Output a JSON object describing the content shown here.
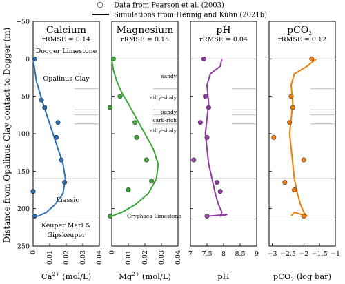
{
  "legend": {
    "data_label": "Data from Pearson et al. (2003)",
    "sim_label": "Simulations from Hennig and Kühn (2021b)"
  },
  "ylabel": "Distance from Opalinus Clay contact to Dogger (m)",
  "panels": {
    "ca": {
      "title": "Calcium",
      "rrmse": "rRMSE = 0.14",
      "xlabel": "Ca",
      "xlabel_sup": "2+",
      "xlabel_unit": " (mol/L)",
      "annotations": {
        "dogger": "Dogger Limestone",
        "opalinus": "Opalinus Clay",
        "liassic": "Liassic",
        "keuper1": "Keuper Marl &",
        "keuper2": "Gipskeuper"
      }
    },
    "mg": {
      "title": "Magnesium",
      "rrmse": "rRMSE = 0.15",
      "xlabel": "Mg",
      "xlabel_sup": "2+",
      "xlabel_unit": " (mol/L)",
      "annotations": {
        "sandy": "sandy",
        "silty1": "silty-shaly",
        "sandy2": "sandy",
        "carb": "carb-rich",
        "silty2": "silty-shaly",
        "gryphaea": "Gryphaea Limestone"
      }
    },
    "ph": {
      "title": "pH",
      "rrmse": "rRMSE = 0.04",
      "xlabel": "pH"
    },
    "pco2": {
      "title": "pCO",
      "title_sub": "2",
      "rrmse": "rRMSE = 0.12",
      "xlabel": "pCO",
      "xlabel_sub": "2",
      "xlabel_unit": " (log bar)"
    }
  },
  "colors": {
    "ca": "#2f6fae",
    "mg": "#3aa637",
    "ph": "#8e3c9e",
    "pco2": "#f07c0a",
    "boundary": "#888888",
    "sub": "#999999"
  },
  "chart_data": [
    {
      "type": "scatter+line",
      "name": "Calcium",
      "x_ticks": [
        "0",
        "0.01",
        "0.02",
        "0.03",
        "0.04"
      ],
      "xlim": [
        0,
        0.04
      ],
      "y_ticks": [
        "−50",
        "0",
        "50",
        "100",
        "150",
        "200",
        "250"
      ],
      "ylim": [
        250,
        -50
      ],
      "points": [
        {
          "x": 0.001,
          "y": 0
        },
        {
          "x": 0.005,
          "y": 55
        },
        {
          "x": 0.007,
          "y": 65
        },
        {
          "x": 0.015,
          "y": 85
        },
        {
          "x": 0.014,
          "y": 105
        },
        {
          "x": 0.017,
          "y": 135
        },
        {
          "x": 0.019,
          "y": 165
        },
        {
          "x": 0.0,
          "y": 177
        },
        {
          "x": 0.001,
          "y": 210
        }
      ],
      "curve": [
        [
          0.0,
          0
        ],
        [
          0.001,
          15
        ],
        [
          0.002,
          30
        ],
        [
          0.004,
          45
        ],
        [
          0.006,
          60
        ],
        [
          0.009,
          80
        ],
        [
          0.012,
          100
        ],
        [
          0.015,
          120
        ],
        [
          0.018,
          140
        ],
        [
          0.0195,
          160
        ],
        [
          0.018,
          180
        ],
        [
          0.013,
          195
        ],
        [
          0.008,
          205
        ],
        [
          0.003,
          210
        ],
        [
          0.0,
          210
        ]
      ]
    },
    {
      "type": "scatter+line",
      "name": "Magnesium",
      "x_ticks": [
        "0",
        "0.01",
        "0.02",
        "0.03",
        "0.04"
      ],
      "xlim": [
        0,
        0.04
      ],
      "y_ticks": [
        "−50",
        "0",
        "50",
        "100",
        "150",
        "200",
        "250"
      ],
      "ylim": [
        250,
        -50
      ],
      "points": [
        {
          "x": 0.001,
          "y": 0
        },
        {
          "x": 0.005,
          "y": 50
        },
        {
          "x": -0.001,
          "y": 65
        },
        {
          "x": 0.014,
          "y": 85
        },
        {
          "x": 0.015,
          "y": 105
        },
        {
          "x": 0.021,
          "y": 135
        },
        {
          "x": 0.024,
          "y": 163
        },
        {
          "x": 0.01,
          "y": 175
        },
        {
          "x": -0.001,
          "y": 210
        }
      ],
      "curve": [
        [
          0.0,
          0
        ],
        [
          0.001,
          15
        ],
        [
          0.003,
          30
        ],
        [
          0.006,
          45
        ],
        [
          0.01,
          60
        ],
        [
          0.015,
          80
        ],
        [
          0.02,
          100
        ],
        [
          0.025,
          120
        ],
        [
          0.028,
          140
        ],
        [
          0.027,
          160
        ],
        [
          0.022,
          180
        ],
        [
          0.014,
          195
        ],
        [
          0.006,
          205
        ],
        [
          0.0,
          210
        ]
      ]
    },
    {
      "type": "scatter+line",
      "name": "pH",
      "x_ticks": [
        "7",
        "7.5",
        "8",
        "8.5",
        "9"
      ],
      "xlim": [
        7,
        9
      ],
      "y_ticks": [
        "−50",
        "0",
        "50",
        "100",
        "150",
        "200",
        "250"
      ],
      "ylim": [
        250,
        -50
      ],
      "points": [
        {
          "x": 7.4,
          "y": 0
        },
        {
          "x": 7.45,
          "y": 50
        },
        {
          "x": 7.55,
          "y": 65
        },
        {
          "x": 7.3,
          "y": 85
        },
        {
          "x": 7.5,
          "y": 105
        },
        {
          "x": 7.1,
          "y": 135
        },
        {
          "x": 7.8,
          "y": 165
        },
        {
          "x": 7.9,
          "y": 177
        },
        {
          "x": 7.5,
          "y": 210
        }
      ],
      "curve": [
        [
          7.95,
          0
        ],
        [
          7.9,
          10
        ],
        [
          7.6,
          20
        ],
        [
          7.5,
          35
        ],
        [
          7.55,
          60
        ],
        [
          7.5,
          80
        ],
        [
          7.45,
          100
        ],
        [
          7.5,
          120
        ],
        [
          7.55,
          140
        ],
        [
          7.65,
          160
        ],
        [
          7.75,
          180
        ],
        [
          7.85,
          195
        ],
        [
          7.95,
          205
        ],
        [
          7.9,
          210
        ],
        [
          8.1,
          208
        ],
        [
          7.55,
          210
        ]
      ]
    },
    {
      "type": "scatter+line",
      "name": "pCO2",
      "x_ticks": [
        "−3",
        "−2.5",
        "−2",
        "−1.5",
        "−1"
      ],
      "xlim": [
        -3.1,
        -1
      ],
      "y_ticks": [
        "−50",
        "0",
        "50",
        "100",
        "150",
        "200",
        "250"
      ],
      "ylim": [
        250,
        -50
      ],
      "points": [
        {
          "x": -1.75,
          "y": 0
        },
        {
          "x": -2.4,
          "y": 50
        },
        {
          "x": -2.35,
          "y": 65
        },
        {
          "x": -2.45,
          "y": 85
        },
        {
          "x": -2.95,
          "y": 105
        },
        {
          "x": -2.0,
          "y": 135
        },
        {
          "x": -2.6,
          "y": 165
        },
        {
          "x": -2.3,
          "y": 175
        },
        {
          "x": -2.0,
          "y": 210
        }
      ],
      "curve": [
        [
          -1.6,
          0
        ],
        [
          -1.9,
          10
        ],
        [
          -2.3,
          20
        ],
        [
          -2.4,
          35
        ],
        [
          -2.35,
          60
        ],
        [
          -2.4,
          80
        ],
        [
          -2.45,
          100
        ],
        [
          -2.4,
          120
        ],
        [
          -2.35,
          140
        ],
        [
          -2.3,
          160
        ],
        [
          -2.2,
          180
        ],
        [
          -2.1,
          195
        ],
        [
          -2.0,
          205
        ],
        [
          -1.9,
          210
        ],
        [
          -2.3,
          205
        ],
        [
          -2.4,
          210
        ]
      ]
    }
  ]
}
